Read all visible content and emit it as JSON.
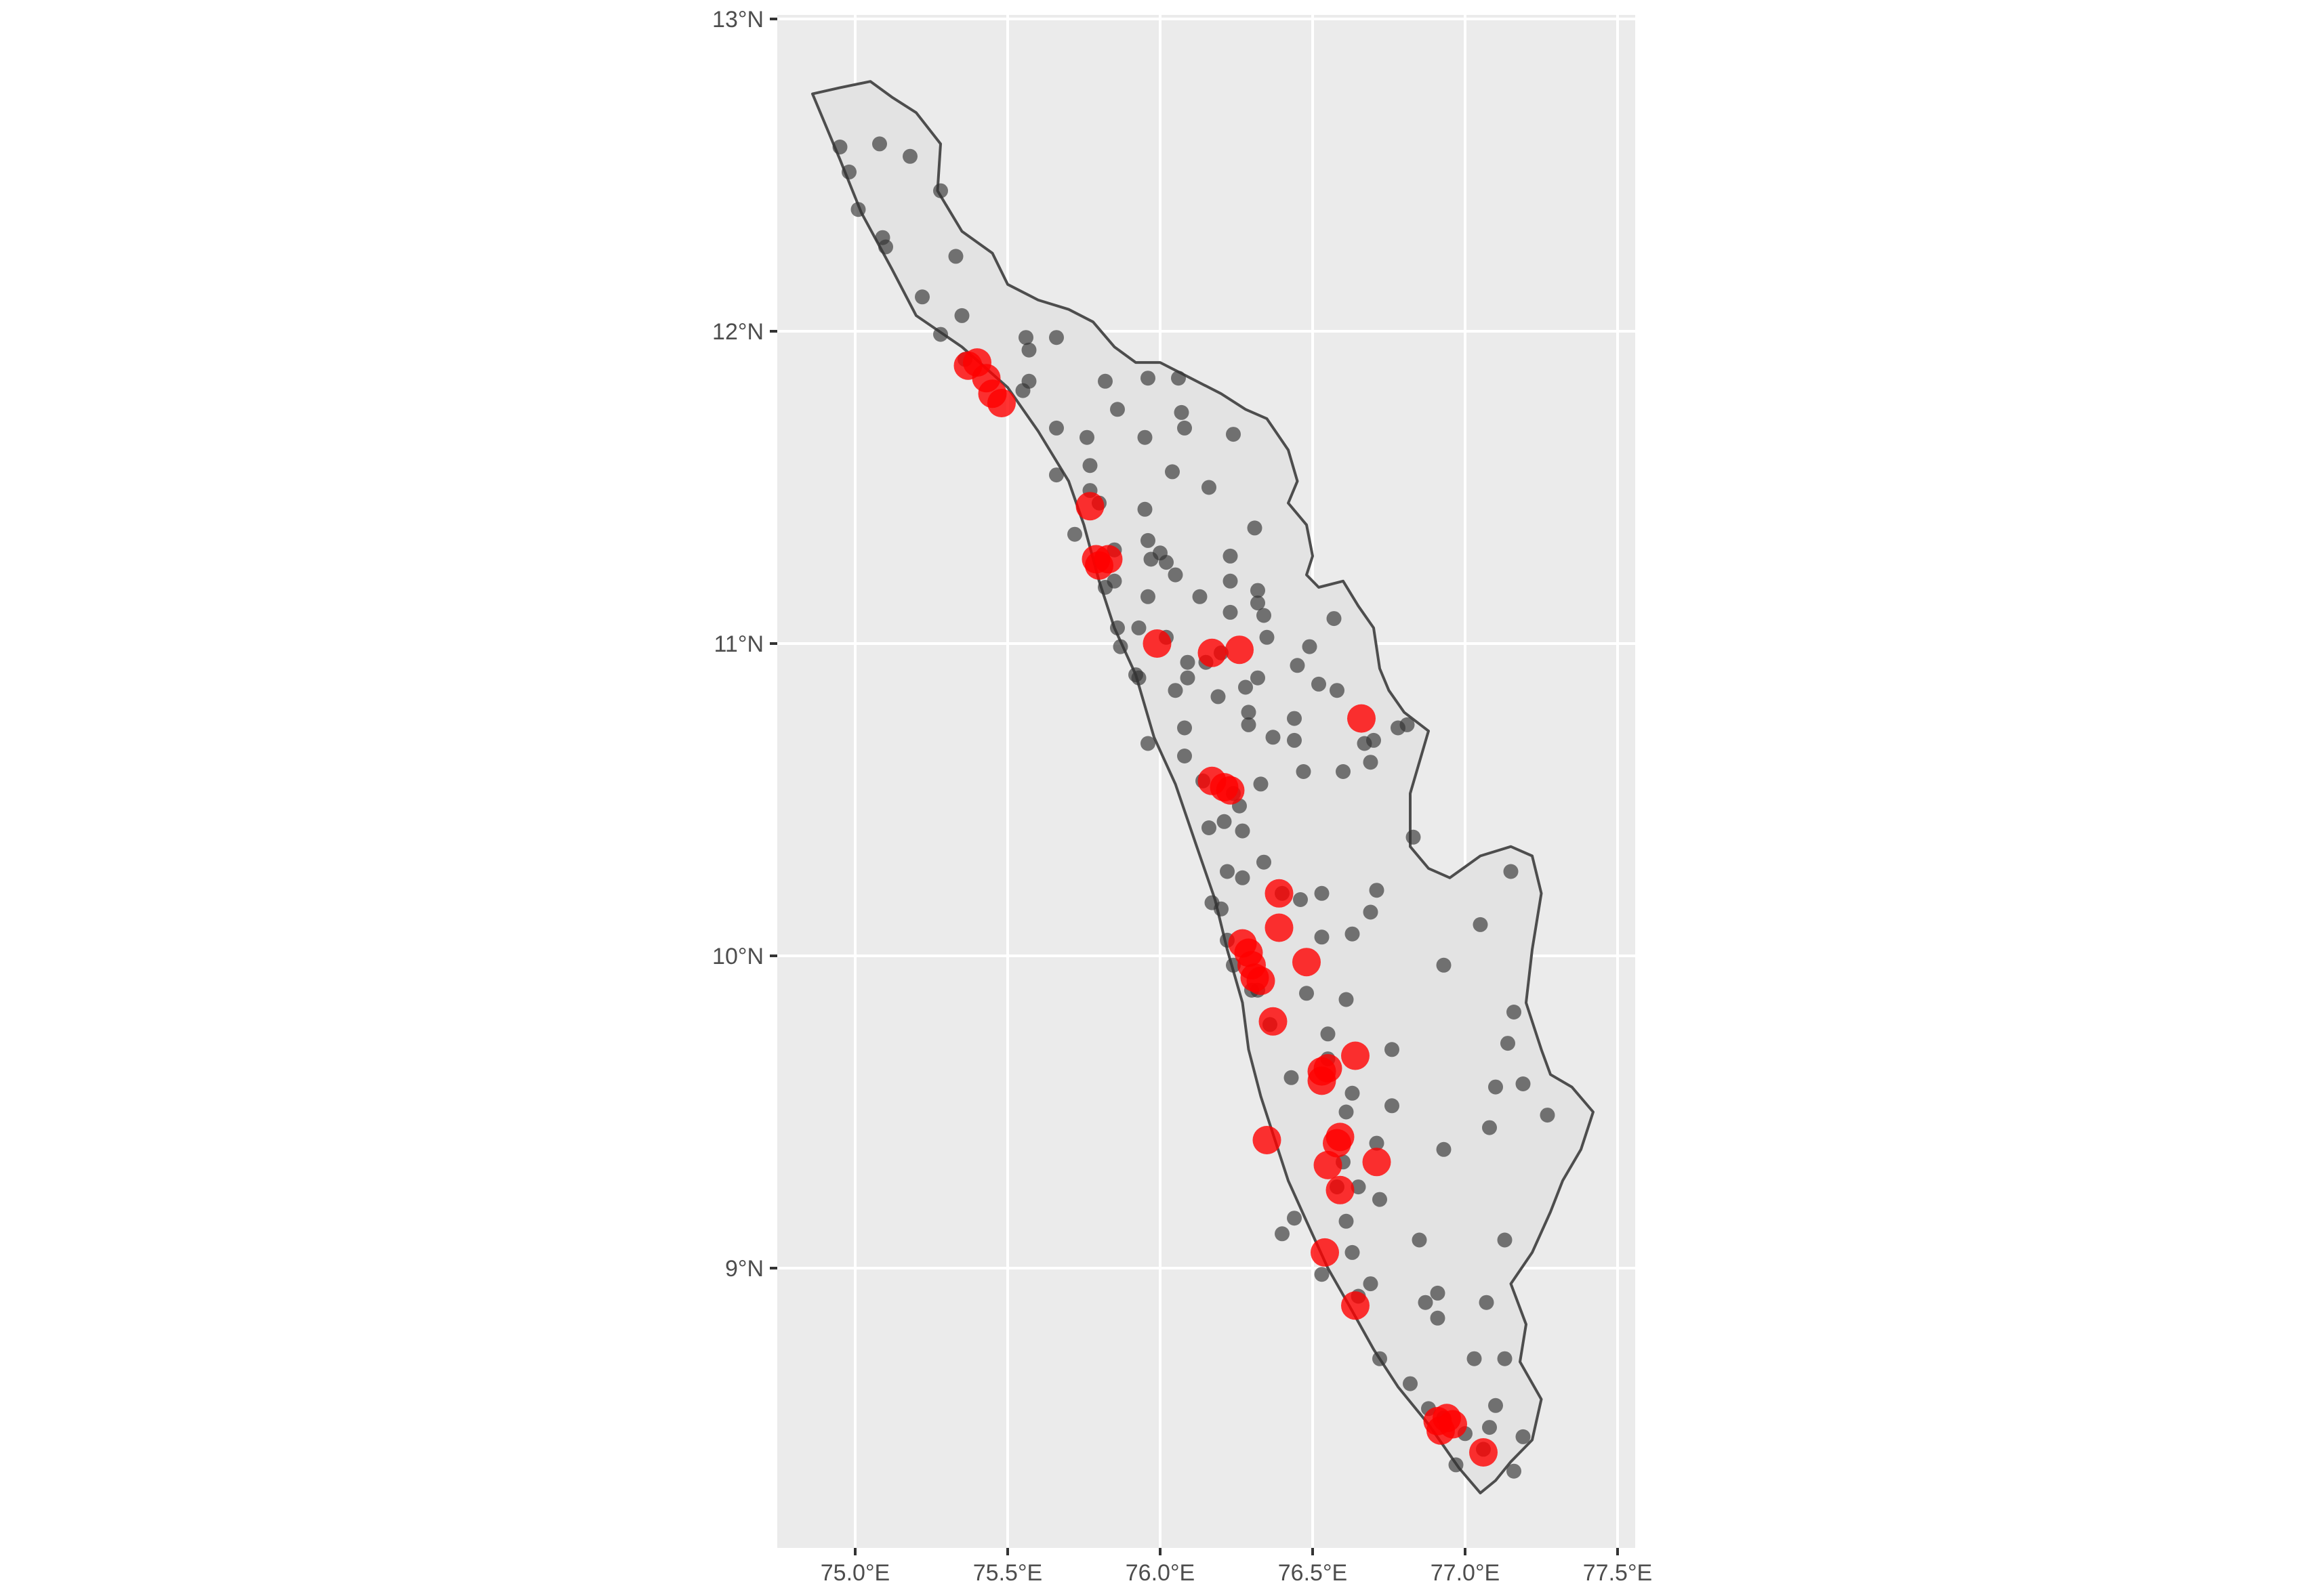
{
  "chart_data": {
    "type": "scatter",
    "title": "",
    "xlabel": "",
    "ylabel": "",
    "xlim": [
      74.75,
      77.55
    ],
    "ylim": [
      8.1,
      13.05
    ],
    "x_ticks": [
      {
        "value": 75.0,
        "label": "75.0°E"
      },
      {
        "value": 75.5,
        "label": "75.5°E"
      },
      {
        "value": 76.0,
        "label": "76.0°E"
      },
      {
        "value": 76.5,
        "label": "76.5°E"
      },
      {
        "value": 77.0,
        "label": "77.0°E"
      },
      {
        "value": 77.5,
        "label": "77.5°E"
      }
    ],
    "y_ticks": [
      {
        "value": 9,
        "label": "9°N"
      },
      {
        "value": 10,
        "label": "10°N"
      },
      {
        "value": 11,
        "label": "11°N"
      },
      {
        "value": 12,
        "label": "12°N"
      },
      {
        "value": 13,
        "label": "13°N"
      }
    ],
    "grid": true,
    "legend": "none",
    "colors": {
      "panel": "#ebebeb",
      "grid": "#ffffff",
      "state_fill": "#e3e3e3",
      "state_outline": "#4d4d4d",
      "gray_points": "#333333",
      "red_points": "#ff0000",
      "axis_text": "#4d4d4d"
    },
    "state_outline": [
      [
        74.86,
        12.76
      ],
      [
        74.95,
        12.78
      ],
      [
        75.05,
        12.8
      ],
      [
        75.12,
        12.75
      ],
      [
        75.2,
        12.7
      ],
      [
        75.28,
        12.6
      ],
      [
        75.27,
        12.45
      ],
      [
        75.35,
        12.32
      ],
      [
        75.45,
        12.25
      ],
      [
        75.5,
        12.15
      ],
      [
        75.6,
        12.1
      ],
      [
        75.7,
        12.07
      ],
      [
        75.78,
        12.03
      ],
      [
        75.85,
        11.95
      ],
      [
        75.92,
        11.9
      ],
      [
        76.0,
        11.9
      ],
      [
        76.1,
        11.85
      ],
      [
        76.2,
        11.8
      ],
      [
        76.28,
        11.75
      ],
      [
        76.35,
        11.72
      ],
      [
        76.42,
        11.62
      ],
      [
        76.45,
        11.52
      ],
      [
        76.42,
        11.45
      ],
      [
        76.48,
        11.38
      ],
      [
        76.5,
        11.28
      ],
      [
        76.48,
        11.22
      ],
      [
        76.52,
        11.18
      ],
      [
        76.6,
        11.2
      ],
      [
        76.65,
        11.12
      ],
      [
        76.7,
        11.05
      ],
      [
        76.72,
        10.92
      ],
      [
        76.75,
        10.85
      ],
      [
        76.8,
        10.78
      ],
      [
        76.88,
        10.72
      ],
      [
        76.85,
        10.62
      ],
      [
        76.82,
        10.52
      ],
      [
        76.82,
        10.42
      ],
      [
        76.82,
        10.35
      ],
      [
        76.88,
        10.28
      ],
      [
        76.95,
        10.25
      ],
      [
        77.05,
        10.32
      ],
      [
        77.15,
        10.35
      ],
      [
        77.22,
        10.32
      ],
      [
        77.25,
        10.2
      ],
      [
        77.22,
        10.02
      ],
      [
        77.2,
        9.85
      ],
      [
        77.25,
        9.7
      ],
      [
        77.28,
        9.62
      ],
      [
        77.35,
        9.58
      ],
      [
        77.42,
        9.5
      ],
      [
        77.38,
        9.38
      ],
      [
        77.32,
        9.28
      ],
      [
        77.28,
        9.18
      ],
      [
        77.22,
        9.05
      ],
      [
        77.15,
        8.95
      ],
      [
        77.2,
        8.82
      ],
      [
        77.18,
        8.7
      ],
      [
        77.25,
        8.58
      ],
      [
        77.22,
        8.45
      ],
      [
        77.15,
        8.38
      ],
      [
        77.1,
        8.32
      ],
      [
        77.05,
        8.28
      ],
      [
        76.98,
        8.36
      ],
      [
        76.88,
        8.5
      ],
      [
        76.78,
        8.62
      ],
      [
        76.7,
        8.74
      ],
      [
        76.62,
        8.88
      ],
      [
        76.55,
        9.0
      ],
      [
        76.48,
        9.15
      ],
      [
        76.42,
        9.28
      ],
      [
        76.38,
        9.4
      ],
      [
        76.33,
        9.55
      ],
      [
        76.29,
        9.7
      ],
      [
        76.27,
        9.85
      ],
      [
        76.22,
        10.02
      ],
      [
        76.18,
        10.18
      ],
      [
        76.12,
        10.35
      ],
      [
        76.05,
        10.55
      ],
      [
        75.98,
        10.7
      ],
      [
        75.92,
        10.9
      ],
      [
        75.85,
        11.05
      ],
      [
        75.8,
        11.2
      ],
      [
        75.75,
        11.38
      ],
      [
        75.7,
        11.52
      ],
      [
        75.6,
        11.68
      ],
      [
        75.5,
        11.82
      ],
      [
        75.35,
        11.95
      ],
      [
        75.2,
        12.05
      ],
      [
        75.12,
        12.2
      ],
      [
        75.02,
        12.38
      ],
      [
        74.95,
        12.55
      ],
      [
        74.86,
        12.76
      ]
    ],
    "series": [
      {
        "marker": "small",
        "color": "gray",
        "points": [
          [
            74.95,
            12.59
          ],
          [
            74.98,
            12.51
          ],
          [
            75.01,
            12.39
          ],
          [
            75.08,
            12.6
          ],
          [
            75.18,
            12.56
          ],
          [
            75.28,
            12.45
          ],
          [
            75.33,
            12.24
          ],
          [
            75.1,
            12.27
          ],
          [
            75.09,
            12.3
          ],
          [
            75.22,
            12.11
          ],
          [
            75.28,
            11.99
          ],
          [
            75.35,
            12.05
          ],
          [
            75.36,
            11.91
          ],
          [
            75.55,
            11.81
          ],
          [
            75.56,
            11.98
          ],
          [
            75.57,
            11.94
          ],
          [
            75.57,
            11.84
          ],
          [
            75.66,
            11.98
          ],
          [
            75.66,
            11.69
          ],
          [
            75.76,
            11.66
          ],
          [
            75.82,
            11.84
          ],
          [
            75.96,
            11.85
          ],
          [
            76.06,
            11.85
          ],
          [
            75.86,
            11.75
          ],
          [
            75.95,
            11.66
          ],
          [
            76.07,
            11.74
          ],
          [
            76.08,
            11.69
          ],
          [
            76.24,
            11.67
          ],
          [
            76.04,
            11.55
          ],
          [
            76.16,
            11.5
          ],
          [
            75.66,
            11.54
          ],
          [
            75.77,
            11.57
          ],
          [
            75.72,
            11.35
          ],
          [
            75.77,
            11.49
          ],
          [
            75.8,
            11.45
          ],
          [
            75.95,
            11.43
          ],
          [
            75.85,
            11.3
          ],
          [
            75.96,
            11.33
          ],
          [
            76.0,
            11.29
          ],
          [
            75.97,
            11.27
          ],
          [
            76.02,
            11.26
          ],
          [
            76.05,
            11.22
          ],
          [
            76.31,
            11.37
          ],
          [
            76.23,
            11.28
          ],
          [
            76.23,
            11.2
          ],
          [
            76.32,
            11.17
          ],
          [
            76.32,
            11.13
          ],
          [
            76.34,
            11.09
          ],
          [
            76.13,
            11.15
          ],
          [
            75.96,
            11.15
          ],
          [
            76.23,
            11.1
          ],
          [
            75.82,
            11.18
          ],
          [
            75.85,
            11.2
          ],
          [
            75.86,
            11.05
          ],
          [
            75.93,
            11.05
          ],
          [
            76.02,
            11.02
          ],
          [
            75.87,
            10.99
          ],
          [
            75.92,
            10.9
          ],
          [
            75.93,
            10.89
          ],
          [
            76.09,
            10.94
          ],
          [
            76.15,
            10.94
          ],
          [
            76.2,
            10.97
          ],
          [
            76.19,
            10.83
          ],
          [
            76.32,
            10.89
          ],
          [
            76.28,
            10.86
          ],
          [
            76.45,
            10.93
          ],
          [
            76.49,
            10.99
          ],
          [
            76.35,
            11.02
          ],
          [
            76.57,
            11.08
          ],
          [
            76.52,
            10.87
          ],
          [
            76.58,
            10.85
          ],
          [
            76.44,
            10.76
          ],
          [
            76.37,
            10.7
          ],
          [
            76.44,
            10.69
          ],
          [
            76.29,
            10.78
          ],
          [
            76.29,
            10.74
          ],
          [
            76.47,
            10.59
          ],
          [
            76.6,
            10.59
          ],
          [
            76.67,
            10.68
          ],
          [
            76.69,
            10.62
          ],
          [
            76.7,
            10.69
          ],
          [
            76.78,
            10.73
          ],
          [
            76.81,
            10.74
          ],
          [
            76.05,
            10.85
          ],
          [
            76.09,
            10.89
          ],
          [
            76.08,
            10.73
          ],
          [
            75.96,
            10.68
          ],
          [
            76.08,
            10.64
          ],
          [
            76.14,
            10.56
          ],
          [
            76.24,
            10.52
          ],
          [
            76.33,
            10.55
          ],
          [
            76.26,
            10.48
          ],
          [
            76.21,
            10.43
          ],
          [
            76.27,
            10.4
          ],
          [
            76.16,
            10.41
          ],
          [
            76.34,
            10.3
          ],
          [
            76.22,
            10.27
          ],
          [
            76.83,
            10.38
          ],
          [
            76.27,
            10.25
          ],
          [
            76.17,
            10.17
          ],
          [
            76.2,
            10.15
          ],
          [
            76.4,
            10.2
          ],
          [
            76.46,
            10.18
          ],
          [
            76.53,
            10.2
          ],
          [
            76.71,
            10.21
          ],
          [
            76.63,
            10.07
          ],
          [
            76.69,
            10.14
          ],
          [
            76.53,
            10.06
          ],
          [
            76.22,
            10.05
          ],
          [
            76.24,
            9.97
          ],
          [
            76.3,
            9.89
          ],
          [
            76.32,
            9.89
          ],
          [
            76.48,
            9.88
          ],
          [
            76.61,
            9.86
          ],
          [
            76.36,
            9.78
          ],
          [
            76.55,
            9.75
          ],
          [
            76.43,
            9.61
          ],
          [
            76.55,
            9.67
          ],
          [
            76.61,
            9.5
          ],
          [
            76.63,
            9.56
          ],
          [
            76.76,
            9.7
          ],
          [
            76.76,
            9.52
          ],
          [
            76.93,
            9.97
          ],
          [
            77.05,
            10.1
          ],
          [
            77.15,
            10.27
          ],
          [
            77.16,
            9.82
          ],
          [
            77.14,
            9.72
          ],
          [
            77.19,
            9.59
          ],
          [
            77.1,
            9.58
          ],
          [
            77.27,
            9.49
          ],
          [
            77.08,
            9.45
          ],
          [
            76.71,
            9.4
          ],
          [
            76.6,
            9.34
          ],
          [
            76.58,
            9.26
          ],
          [
            76.61,
            9.15
          ],
          [
            76.65,
            9.26
          ],
          [
            76.72,
            9.22
          ],
          [
            76.93,
            9.38
          ],
          [
            76.44,
            9.16
          ],
          [
            76.4,
            9.11
          ],
          [
            76.53,
            8.98
          ],
          [
            76.65,
            8.91
          ],
          [
            76.69,
            8.95
          ],
          [
            76.63,
            9.05
          ],
          [
            76.85,
            9.09
          ],
          [
            77.13,
            9.09
          ],
          [
            76.87,
            8.89
          ],
          [
            76.91,
            8.92
          ],
          [
            76.91,
            8.84
          ],
          [
            77.07,
            8.89
          ],
          [
            77.03,
            8.71
          ],
          [
            77.13,
            8.71
          ],
          [
            76.72,
            8.71
          ],
          [
            76.82,
            8.63
          ],
          [
            76.88,
            8.55
          ],
          [
            76.93,
            8.52
          ],
          [
            77.0,
            8.47
          ],
          [
            77.1,
            8.56
          ],
          [
            77.08,
            8.49
          ],
          [
            77.16,
            8.35
          ],
          [
            77.19,
            8.46
          ],
          [
            76.97,
            8.37
          ],
          [
            77.06,
            8.42
          ]
        ]
      },
      {
        "marker": "large",
        "color": "red",
        "points": [
          [
            75.37,
            11.89
          ],
          [
            75.4,
            11.9
          ],
          [
            75.43,
            11.85
          ],
          [
            75.45,
            11.8
          ],
          [
            75.48,
            11.77
          ],
          [
            75.77,
            11.44
          ],
          [
            75.79,
            11.27
          ],
          [
            75.8,
            11.25
          ],
          [
            75.83,
            11.27
          ],
          [
            75.99,
            11.0
          ],
          [
            76.17,
            10.97
          ],
          [
            76.26,
            10.98
          ],
          [
            76.66,
            10.76
          ],
          [
            76.17,
            10.56
          ],
          [
            76.21,
            10.54
          ],
          [
            76.23,
            10.53
          ],
          [
            76.39,
            10.2
          ],
          [
            76.39,
            10.09
          ],
          [
            76.27,
            10.04
          ],
          [
            76.29,
            10.01
          ],
          [
            76.3,
            9.97
          ],
          [
            76.31,
            9.93
          ],
          [
            76.33,
            9.92
          ],
          [
            76.48,
            9.98
          ],
          [
            76.37,
            9.79
          ],
          [
            76.53,
            9.63
          ],
          [
            76.55,
            9.64
          ],
          [
            76.53,
            9.6
          ],
          [
            76.64,
            9.68
          ],
          [
            76.35,
            9.41
          ],
          [
            76.58,
            9.4
          ],
          [
            76.59,
            9.42
          ],
          [
            76.55,
            9.33
          ],
          [
            76.71,
            9.34
          ],
          [
            76.59,
            9.25
          ],
          [
            76.54,
            9.05
          ],
          [
            76.64,
            8.88
          ],
          [
            76.91,
            8.51
          ],
          [
            76.94,
            8.52
          ],
          [
            76.96,
            8.5
          ],
          [
            76.92,
            8.48
          ],
          [
            77.06,
            8.41
          ]
        ]
      }
    ]
  }
}
